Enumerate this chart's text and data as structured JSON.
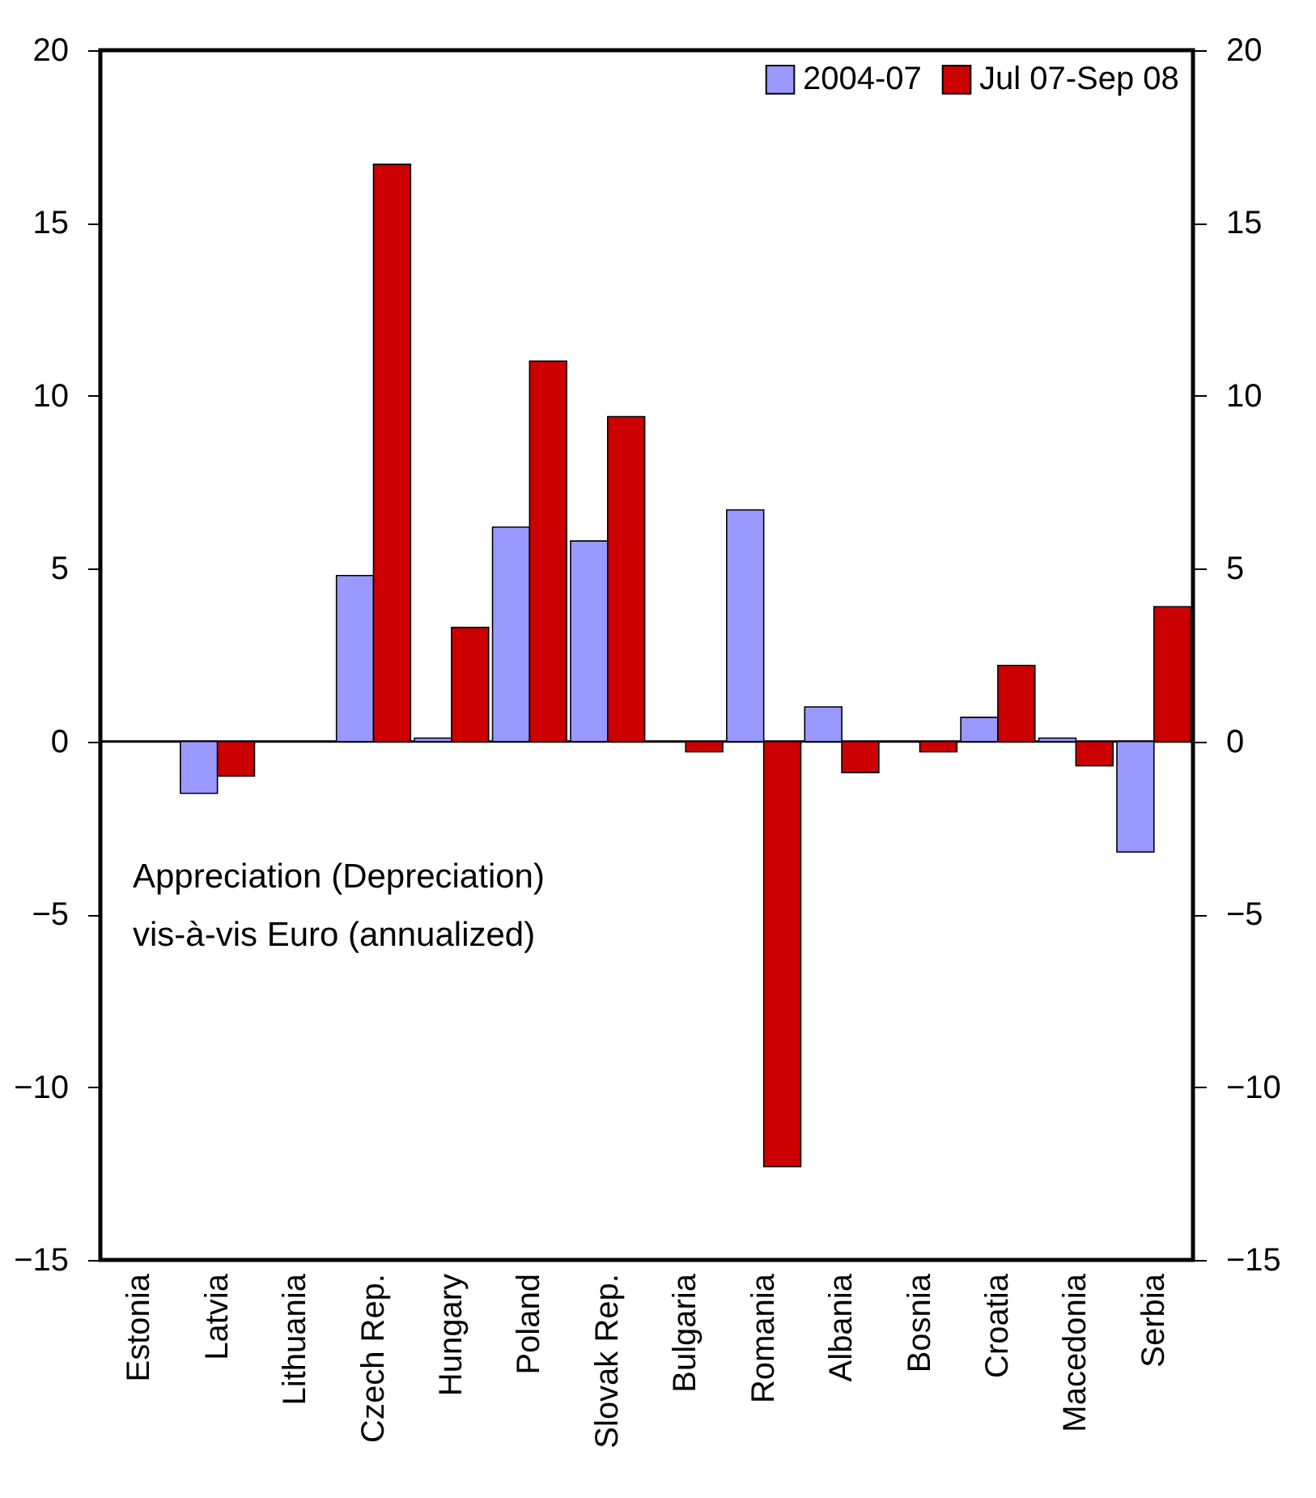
{
  "chart_data": {
    "type": "bar",
    "categories": [
      "Estonia",
      "Latvia",
      "Lithuania",
      "Czech Rep.",
      "Hungary",
      "Poland",
      "Slovak Rep.",
      "Bulgaria",
      "Romania",
      "Albania",
      "Bosnia",
      "Croatia",
      "Macedonia",
      "Serbia"
    ],
    "series": [
      {
        "name": "2004-07",
        "color": "#9999ff",
        "values": [
          null,
          -1.5,
          null,
          4.8,
          0.1,
          6.2,
          5.8,
          null,
          6.7,
          1.0,
          null,
          0.7,
          0.1,
          -3.2
        ]
      },
      {
        "name": "Jul 07-Sep 08",
        "color": "#cc0000",
        "values": [
          null,
          -1.0,
          null,
          16.7,
          3.3,
          11.0,
          9.4,
          -0.3,
          -12.3,
          -0.9,
          -0.3,
          2.2,
          -0.7,
          3.9
        ]
      }
    ],
    "ylim": [
      -15,
      20
    ],
    "yticks": [
      -15,
      -10,
      -5,
      0,
      5,
      10,
      15,
      20
    ],
    "y2lim": [
      -15,
      20
    ],
    "y2ticks": [
      -15,
      -10,
      -5,
      0,
      5,
      10,
      15,
      20
    ],
    "ref_lines": [
      {
        "axis": "y",
        "value": 0,
        "color": "#000000"
      }
    ],
    "annotations": [
      "Appreciation (Depreciation)\nvis-à-vis Euro (annualized)"
    ],
    "legend": "top right",
    "grid": false
  }
}
